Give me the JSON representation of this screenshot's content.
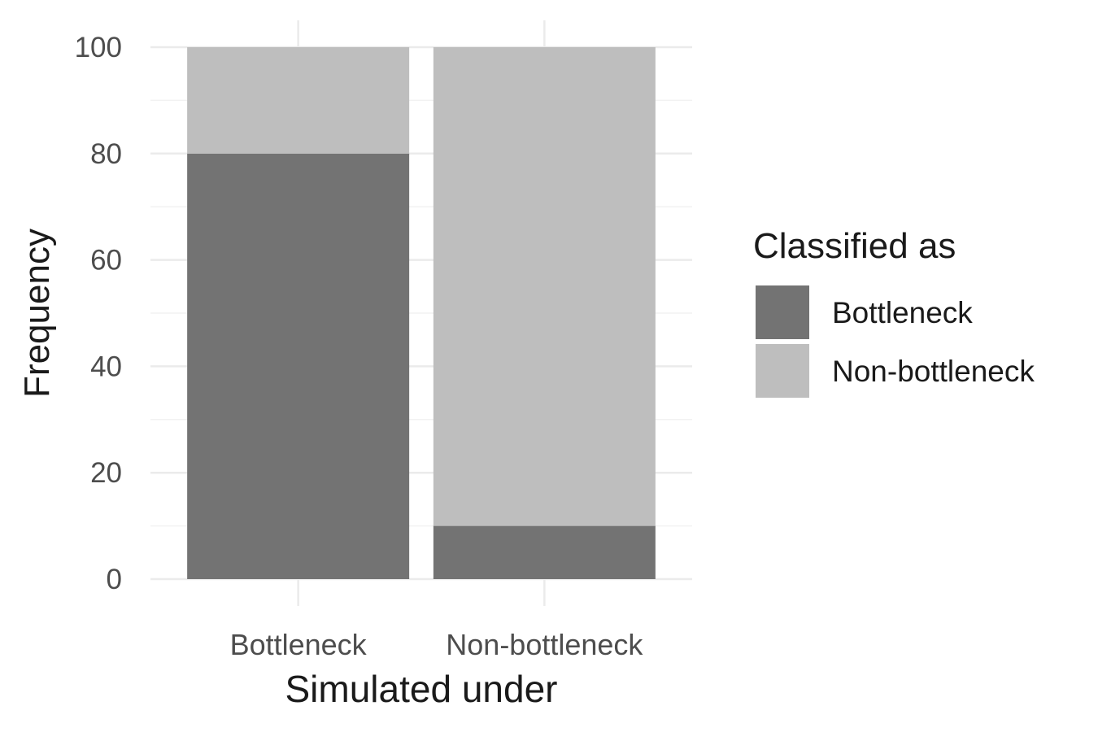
{
  "chart_data": {
    "type": "bar",
    "stacked": true,
    "categories": [
      "Bottleneck",
      "Non-bottleneck"
    ],
    "series": [
      {
        "name": "Bottleneck",
        "values": [
          80,
          10
        ],
        "color": "#737373"
      },
      {
        "name": "Non-bottleneck",
        "values": [
          20,
          90
        ],
        "color": "#bebebe"
      }
    ],
    "xlabel": "Simulated under",
    "ylabel": "Frequency",
    "ylim": [
      0,
      100
    ],
    "yticks": [
      0,
      20,
      40,
      60,
      80,
      100
    ],
    "legend": {
      "title": "Classified as",
      "position": "right"
    },
    "grid": true
  }
}
